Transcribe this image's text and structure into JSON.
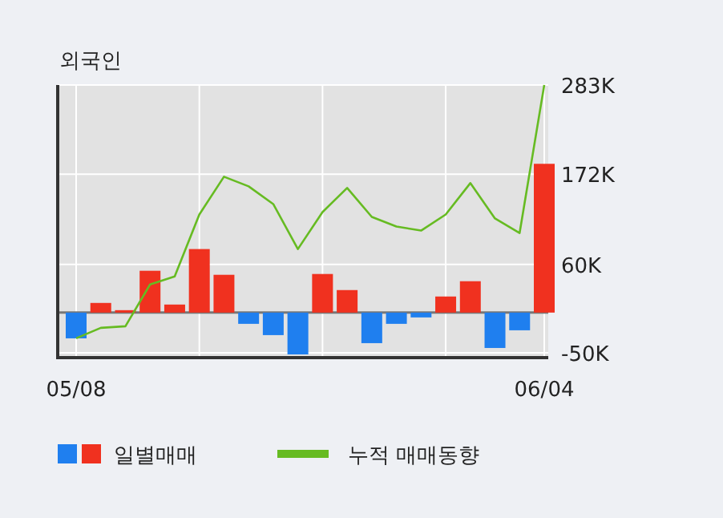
{
  "chart_data": {
    "type": "bar",
    "title": "외국인",
    "categories": [
      "05/08",
      null,
      null,
      null,
      null,
      null,
      null,
      null,
      null,
      null,
      null,
      null,
      null,
      null,
      null,
      null,
      null,
      null,
      null,
      "06/04"
    ],
    "series": [
      {
        "name": "일별매매",
        "values": [
          -32000,
          12000,
          3000,
          52000,
          10000,
          79000,
          47000,
          -14000,
          -28000,
          -52000,
          48000,
          28000,
          -38000,
          -14000,
          -6000,
          20000,
          39000,
          -44000,
          -22000,
          185000
        ],
        "colors": [
          "#1f7fef",
          "#f0311f",
          "#f0311f",
          "#f0311f",
          "#f0311f",
          "#f0311f",
          "#f0311f",
          "#1f7fef",
          "#1f7fef",
          "#1f7fef",
          "#f0311f",
          "#f0311f",
          "#1f7fef",
          "#1f7fef",
          "#1f7fef",
          "#f0311f",
          "#f0311f",
          "#1f7fef",
          "#1f7fef",
          "#f0311f"
        ]
      },
      {
        "name": "누적 매매동향",
        "type": "line",
        "color": "#66bb22",
        "values": [
          -32000,
          -19000,
          -17000,
          35000,
          45000,
          122000,
          169000,
          157000,
          135000,
          79000,
          125000,
          155000,
          119000,
          107000,
          102000,
          122000,
          161000,
          117000,
          99000,
          283000
        ]
      }
    ],
    "ylim": [
      -56000,
      283000
    ],
    "yticks": [
      {
        "value": 283000,
        "label": "283K"
      },
      {
        "value": 172000,
        "label": "172K"
      },
      {
        "value": 60000,
        "label": "60K"
      },
      {
        "value": -50000,
        "label": "-50K"
      }
    ],
    "grid": true,
    "legend": "bottom"
  }
}
